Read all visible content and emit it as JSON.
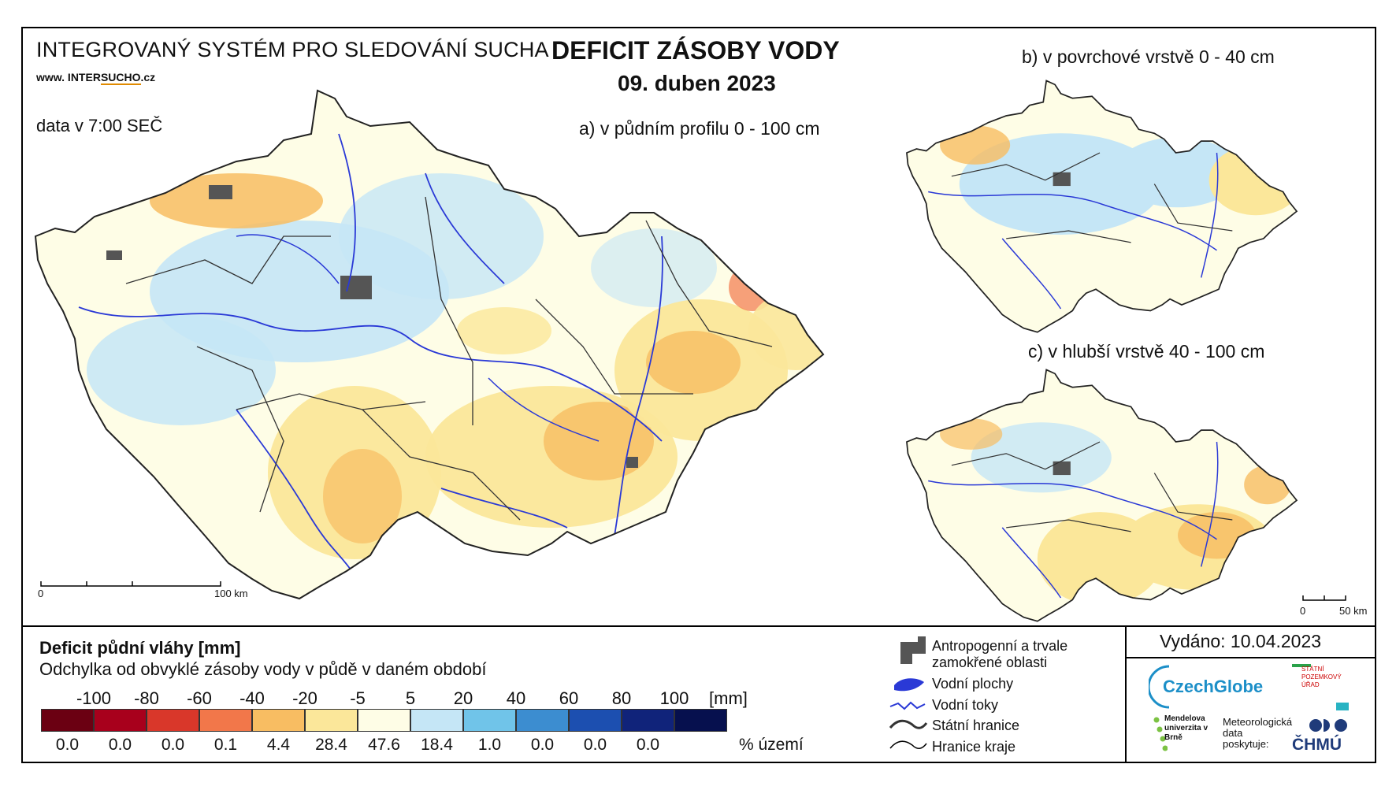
{
  "header": {
    "system_title": "INTEGROVANÝ SYSTÉM PRO SLEDOVÁNÍ SUCHA",
    "website_prefix": "www. INTER",
    "website_highlight": "SUCHO",
    "website_suffix": ".cz",
    "data_time": "data v 7:00 SEČ",
    "title": "DEFICIT ZÁSOBY VODY",
    "date": "09. duben 2023"
  },
  "maps": {
    "a_label": "a) v půdním profilu 0 - 100 cm",
    "b_label": "b) v povrchové vrstvě 0 - 40 cm",
    "c_label": "c) v hlubší vrstvě 40 - 100 cm",
    "scale_main": [
      "0",
      "100 km"
    ],
    "scale_small": [
      "0",
      "50 km"
    ]
  },
  "legend": {
    "title": "Deficit půdní vláhy  [mm]",
    "subtitle": "Odchylka od obvyklé zásoby vody v půdě v daném období",
    "ticks": [
      "-100",
      "-80",
      "-60",
      "-40",
      "-20",
      "-5",
      "5",
      "20",
      "40",
      "60",
      "80",
      "100"
    ],
    "unit": "[mm]",
    "colors": [
      "#6b0012",
      "#a8001c",
      "#d9372a",
      "#f2774a",
      "#f8bd62",
      "#fbe79a",
      "#fefde6",
      "#c5e6f6",
      "#70c4e9",
      "#3c8dd0",
      "#1c4fb0",
      "#10237a",
      "#06104e"
    ],
    "percents": [
      "0.0",
      "0.0",
      "0.0",
      "0.1",
      "4.4",
      "28.4",
      "47.6",
      "18.4",
      "1.0",
      "0.0",
      "0.0",
      "0.0"
    ],
    "percent_unit": "% území"
  },
  "symbols": {
    "urban": "Antropogenní a trvale zamokřené oblasti",
    "water_bodies": "Vodní plochy",
    "rivers": "Vodní toky",
    "state_border": "Státní hranice",
    "region_border": "Hranice kraje"
  },
  "footer": {
    "issued": "Vydáno: 10.04.2023",
    "czechglobe": "CzechGlobe",
    "spu": "STÁTNÍ POZEMKOVÝ ÚŘAD",
    "mendel": "Mendelova univerzita v Brně",
    "data_provided": "Meteorologická data poskytuje:",
    "chmu": "ČHMÚ"
  }
}
